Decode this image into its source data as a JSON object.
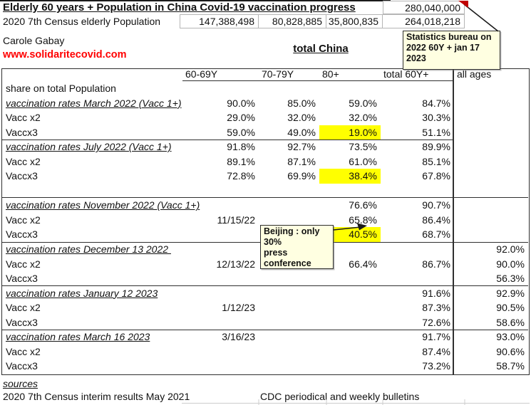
{
  "header": {
    "title": "Elderly 60 years + Population in China Covid-19 vaccination progress",
    "total_60plus_2022": "280,040,000",
    "census_label": "2020 7th Census elderly Population",
    "census_values": [
      "147,388,498",
      "80,828,885",
      "35,800,835",
      "264,018,218"
    ],
    "author": "Carole Gabay",
    "website": "www.solidaritecovid.com",
    "scope_label": "total China"
  },
  "notes": {
    "statistics": "Statistics bureau on\n2022 60Y + jan 17\n2023",
    "beijing": "Beijing : only\n30%\npress\nconference"
  },
  "table": {
    "columns": [
      "60-69Y",
      "70-79Y",
      "80+",
      "total 60Y+",
      "all ages"
    ],
    "share_note": "share on total Population",
    "rows": [
      {
        "label": "share on total Population",
        "type": "plain",
        "cells": [
          "",
          "",
          "",
          "",
          ""
        ]
      },
      {
        "label": "vaccination rates March 2022 (Vacc 1+)",
        "type": "section",
        "cells": [
          "90.0%",
          "85.0%",
          "59.0%",
          "84.7%",
          ""
        ]
      },
      {
        "label": "Vacc x2",
        "type": "data",
        "cells": [
          "29.0%",
          "32.0%",
          "32.0%",
          "30.3%",
          ""
        ]
      },
      {
        "label": "Vaccx3",
        "type": "data",
        "cells": [
          "59.0%",
          "49.0%",
          "19.0%",
          "51.1%",
          ""
        ],
        "highlight": 2,
        "divider": "partial"
      },
      {
        "label": "vaccination rates July 2022 (Vacc 1+)",
        "type": "section",
        "cells": [
          "91.8%",
          "92.7%",
          "73.5%",
          "89.9%",
          ""
        ]
      },
      {
        "label": "Vacc x2",
        "type": "data",
        "cells": [
          "89.1%",
          "87.1%",
          "61.0%",
          "85.1%",
          ""
        ]
      },
      {
        "label": "Vaccx3",
        "type": "data",
        "cells": [
          "72.8%",
          "69.9%",
          "38.4%",
          "67.8%",
          ""
        ],
        "highlight": 2
      },
      {
        "label": "",
        "type": "empty",
        "cells": [
          "",
          "",
          "",
          "",
          ""
        ],
        "divider": "full"
      },
      {
        "label": "vaccination rates November 2022 (Vacc 1+)",
        "type": "section",
        "cells": [
          "",
          "",
          "76.6%",
          "90.7%",
          ""
        ]
      },
      {
        "label": "Vacc x2",
        "type": "data",
        "cells": [
          "11/15/22",
          "",
          "65.8%",
          "86.4%",
          ""
        ]
      },
      {
        "label": "Vaccx3",
        "type": "data",
        "cells": [
          "",
          "",
          "40.5%",
          "68.7%",
          ""
        ],
        "highlight": 2,
        "divider": "full"
      },
      {
        "label": "vaccination rates December 13 2022 ",
        "type": "section",
        "cells": [
          "",
          "",
          "",
          "",
          "92.0%"
        ]
      },
      {
        "label": "Vacc x2",
        "type": "data",
        "cells": [
          "12/13/22",
          "",
          "66.4%",
          "86.7%",
          "90.0%"
        ]
      },
      {
        "label": "Vaccx3",
        "type": "data",
        "cells": [
          "",
          "",
          "",
          "",
          "56.3%"
        ],
        "divider": "full"
      },
      {
        "label": "vaccination rates January 12 2023",
        "type": "section",
        "cells": [
          "",
          "",
          "",
          "91.6%",
          "92.9%"
        ]
      },
      {
        "label": "Vacc x2",
        "type": "data",
        "cells": [
          "1/12/23",
          "",
          "",
          "87.3%",
          "90.5%"
        ]
      },
      {
        "label": "Vaccx3",
        "type": "data",
        "cells": [
          "",
          "",
          "",
          "72.6%",
          "58.6%"
        ],
        "divider": "full"
      },
      {
        "label": "vaccination rates March 16 2023",
        "type": "section",
        "cells": [
          "3/16/23",
          "",
          "",
          "91.7%",
          "93.0%"
        ]
      },
      {
        "label": "Vacc x2",
        "type": "data",
        "cells": [
          "",
          "",
          "",
          "87.4%",
          "90.6%"
        ]
      },
      {
        "label": "Vaccx3",
        "type": "data",
        "cells": [
          "",
          "",
          "",
          "73.2%",
          "58.7%"
        ]
      }
    ]
  },
  "footer": {
    "sources_label": "sources",
    "source_1": "2020 7th Census interim results May 2021",
    "source_2": "CDC periodical and weekly bulletins"
  },
  "colors": {
    "highlight_yellow": "#ffff00",
    "note_background": "#ffffe1",
    "website_red": "#ff0000",
    "comment_marker_red": "#c00000",
    "border_dark": "#2f2f2f",
    "gridline_gray": "#b5b5b5"
  }
}
